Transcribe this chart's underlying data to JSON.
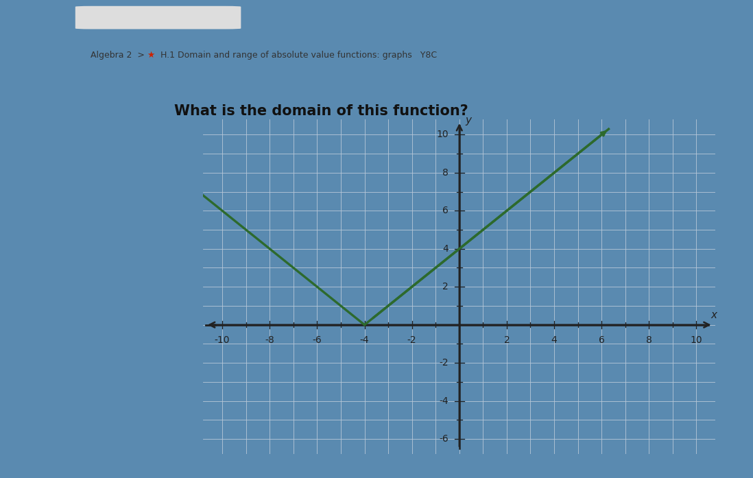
{
  "title_bar_text": "Algebra 2  >  ★  H.1 Domain and range of absolute value functions: graphs   Y8C",
  "question": "What is the domain of this function?",
  "vertex": [
    -4,
    0
  ],
  "x_range": [
    -10,
    10
  ],
  "y_range": [
    -6,
    10
  ],
  "line_color": "#2d6a2d",
  "line_width": 2.4,
  "outer_bg": "#5a8ab0",
  "dark_top_color": "#333333",
  "nav_bar_color": "#b8d0e8",
  "panel_color": "#ffffff",
  "panel_shadow": "#cccccc",
  "question_fontsize": 15,
  "axis_tick_fontsize": 10,
  "x_label": "x",
  "y_label": "y",
  "grid_color": "#b8c8d8",
  "axis_color": "#222222",
  "star_color": "#cc2200",
  "text_color": "#333333"
}
